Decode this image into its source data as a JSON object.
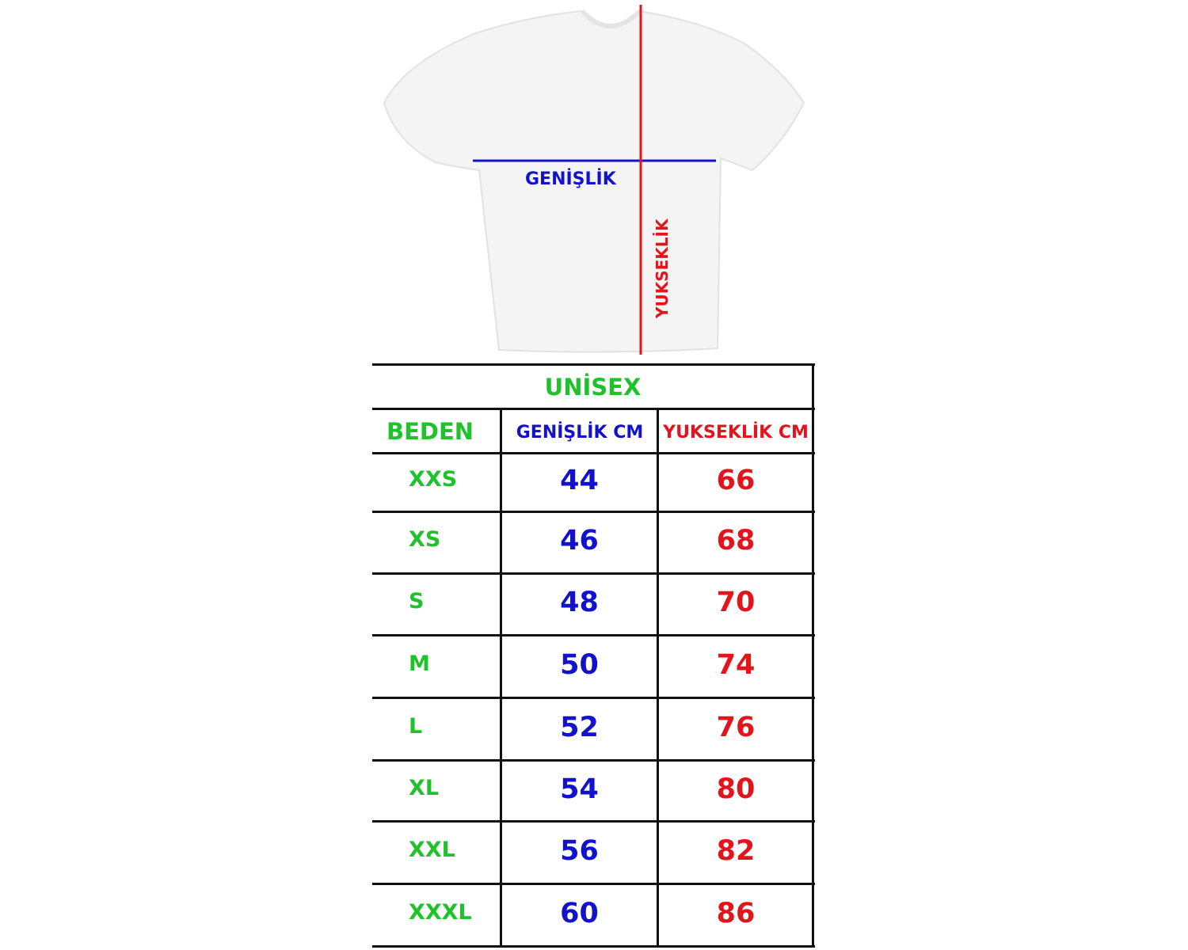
{
  "diagram": {
    "width_label": "GENİŞLİK",
    "height_label": "YUKSEKLİK",
    "width_line_color": "#1212cc",
    "height_line_color": "#e3141b"
  },
  "table": {
    "title": "UNİSEX",
    "headers": [
      "BEDEN",
      "GENİŞLİK CM",
      "YUKSEKLİK CM"
    ],
    "rows": [
      {
        "size": "XXS",
        "width": "44",
        "height": "66"
      },
      {
        "size": "XS",
        "width": "46",
        "height": "68"
      },
      {
        "size": "S",
        "width": "48",
        "height": "70"
      },
      {
        "size": "M",
        "width": "50",
        "height": "74"
      },
      {
        "size": "L",
        "width": "52",
        "height": "76"
      },
      {
        "size": "XL",
        "width": "54",
        "height": "80"
      },
      {
        "size": "XXL",
        "width": "56",
        "height": "82"
      },
      {
        "size": "XXXL",
        "width": "60",
        "height": "86"
      }
    ]
  },
  "colors": {
    "size": "#1fc22a",
    "width": "#1212cc",
    "height": "#e3141b"
  }
}
